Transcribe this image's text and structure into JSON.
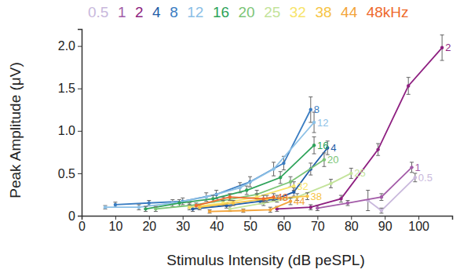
{
  "chart_data": {
    "type": "line",
    "x_label": "Stimulus Intensity (dB peSPL)",
    "y_label": "Peak Amplitude (μV)",
    "annotations": [
      "kHz"
    ],
    "xlim": [
      0,
      110
    ],
    "xticks": [
      0,
      10,
      20,
      30,
      40,
      50,
      60,
      70,
      80,
      90,
      100
    ],
    "ylim": [
      0,
      2.2
    ],
    "yticks": [
      0,
      0.5,
      {
        "value": 1,
        "label": "1.0"
      },
      1.5,
      {
        "value": 2,
        "label": "2.0"
      }
    ],
    "grid": false,
    "legend": "top",
    "marker": "circle",
    "series": [
      {
        "name": "0.5",
        "color": "#c9b8dc",
        "x": [
          85,
          89,
          99
        ],
        "values": [
          0.18,
          0.06,
          0.45
        ],
        "errors": [
          0.12,
          0.03,
          0.05
        ]
      },
      {
        "name": "1",
        "color": "#a35ca8",
        "x": [
          70,
          79,
          89,
          98
        ],
        "values": [
          0.09,
          0.15,
          0.22,
          0.57
        ],
        "errors": [
          0.03,
          0.03,
          0.04,
          0.06
        ]
      },
      {
        "name": "2",
        "color": "#8e1f80",
        "x": [
          58,
          68,
          77,
          88,
          97,
          107
        ],
        "values": [
          0.08,
          0.1,
          0.2,
          0.78,
          1.53,
          1.98
        ],
        "errors": [
          0.03,
          0.03,
          0.04,
          0.07,
          0.1,
          0.15
        ]
      },
      {
        "name": "4",
        "color": "#1f5ca8",
        "x": [
          33,
          43,
          53,
          58,
          63,
          68,
          73
        ],
        "values": [
          0.08,
          0.12,
          0.17,
          0.2,
          0.28,
          0.55,
          0.8
        ],
        "errors": [
          0.03,
          0.03,
          0.03,
          0.04,
          0.05,
          0.07,
          0.08
        ]
      },
      {
        "name": "8",
        "color": "#3a7dc2",
        "x": [
          10,
          20,
          30,
          40,
          50,
          60,
          68
        ],
        "values": [
          0.13,
          0.15,
          0.17,
          0.25,
          0.4,
          0.62,
          1.25
        ],
        "errors": [
          0.03,
          0.03,
          0.04,
          0.05,
          0.06,
          0.08,
          0.15
        ]
      },
      {
        "name": "12",
        "color": "#8cc0e6",
        "x": [
          7,
          17,
          27,
          37,
          47,
          57,
          69
        ],
        "values": [
          0.1,
          0.1,
          0.15,
          0.22,
          0.33,
          0.55,
          1.1
        ],
        "errors": [
          0.02,
          0.03,
          0.04,
          0.05,
          0.06,
          0.08,
          0.12
        ]
      },
      {
        "name": "16",
        "color": "#2ea35a",
        "x": [
          19,
          29,
          39,
          49,
          59,
          69
        ],
        "values": [
          0.08,
          0.15,
          0.2,
          0.3,
          0.45,
          0.83
        ],
        "errors": [
          0.03,
          0.04,
          0.04,
          0.05,
          0.07,
          0.1
        ]
      },
      {
        "name": "20",
        "color": "#7cc576",
        "x": [
          22,
          32,
          42,
          52,
          62,
          72
        ],
        "values": [
          0.08,
          0.12,
          0.18,
          0.25,
          0.4,
          0.66
        ],
        "errors": [
          0.03,
          0.03,
          0.04,
          0.05,
          0.06,
          0.08
        ]
      },
      {
        "name": "25",
        "color": "#c3e39a",
        "x": [
          44,
          54,
          64,
          74,
          80
        ],
        "values": [
          0.08,
          0.15,
          0.22,
          0.38,
          0.5
        ],
        "errors": [
          0.03,
          0.03,
          0.04,
          0.05,
          0.06
        ]
      },
      {
        "name": "32",
        "color": "#f7e46a",
        "x": [
          32,
          42,
          52,
          63
        ],
        "values": [
          0.1,
          0.15,
          0.22,
          0.35
        ],
        "errors": [
          0.03,
          0.03,
          0.04,
          0.05
        ]
      },
      {
        "name": "38",
        "color": "#f6c445",
        "x": [
          35,
          45,
          55,
          67
        ],
        "values": [
          0.1,
          0.15,
          0.2,
          0.23
        ],
        "errors": [
          0.03,
          0.03,
          0.04,
          0.04
        ]
      },
      {
        "name": "44",
        "color": "#f3a43a",
        "x": [
          38,
          48,
          56,
          62
        ],
        "values": [
          0.05,
          0.06,
          0.07,
          0.17
        ],
        "errors": [
          0.02,
          0.02,
          0.03,
          0.04
        ]
      },
      {
        "name": "48",
        "color": "#ee6a2c",
        "x": [
          34,
          44,
          54,
          57
        ],
        "values": [
          0.12,
          0.22,
          0.2,
          0.22
        ],
        "errors": [
          0.03,
          0.04,
          0.04,
          0.04
        ]
      }
    ]
  }
}
